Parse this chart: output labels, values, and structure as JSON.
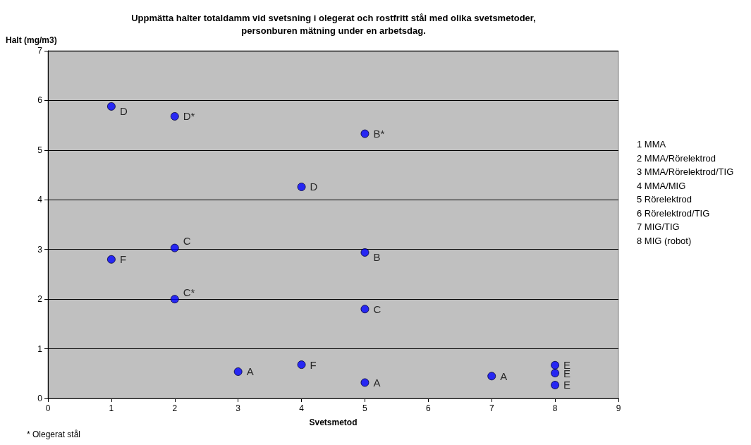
{
  "chart_data": {
    "type": "scatter",
    "title": "Uppmätta halter totaldamm vid svetsning i olegerat och rostfritt stål med olika svetsmetoder,\npersonburen mätning under en arbetsdag.",
    "xlabel": "Svetsmetod",
    "ylabel": "Halt (mg/m3)",
    "x": [
      1,
      2,
      5,
      4,
      2,
      1,
      5,
      2,
      5,
      3,
      4,
      5,
      7,
      8,
      8,
      8
    ],
    "series": [
      {
        "color": "#0000ff",
        "values": [
          5.88,
          5.68,
          5.33,
          4.26,
          3.03,
          2.8,
          2.94,
          2.0,
          1.8,
          0.54,
          0.68,
          0.32,
          0.45,
          0.67,
          0.51,
          0.27
        ],
        "value_labels": [
          "D",
          "D*",
          "B*",
          "D",
          "C",
          "F",
          "B",
          "C*",
          "C",
          "A",
          "F",
          "A",
          "A",
          "E",
          "E",
          "E"
        ]
      }
    ],
    "xlim": [
      0,
      9
    ],
    "xticks": [
      0,
      1,
      2,
      3,
      4,
      5,
      6,
      7,
      8,
      9
    ],
    "ylim": [
      0,
      7
    ],
    "yticks": [
      0,
      1,
      2,
      3,
      4,
      5,
      6,
      7
    ],
    "grid": "y",
    "marker": "circle",
    "annotations": [
      "1 MMA",
      "2 MMA/Rörelektrod",
      "3 MMA/Rörelektrod/TIG",
      "4 MMA/MIG",
      "5 Rörelektrod",
      "6 Rörelektrod/TIG",
      "7 MIG/TIG",
      "8 MIG (robot)",
      "* Olegerat stål"
    ]
  }
}
